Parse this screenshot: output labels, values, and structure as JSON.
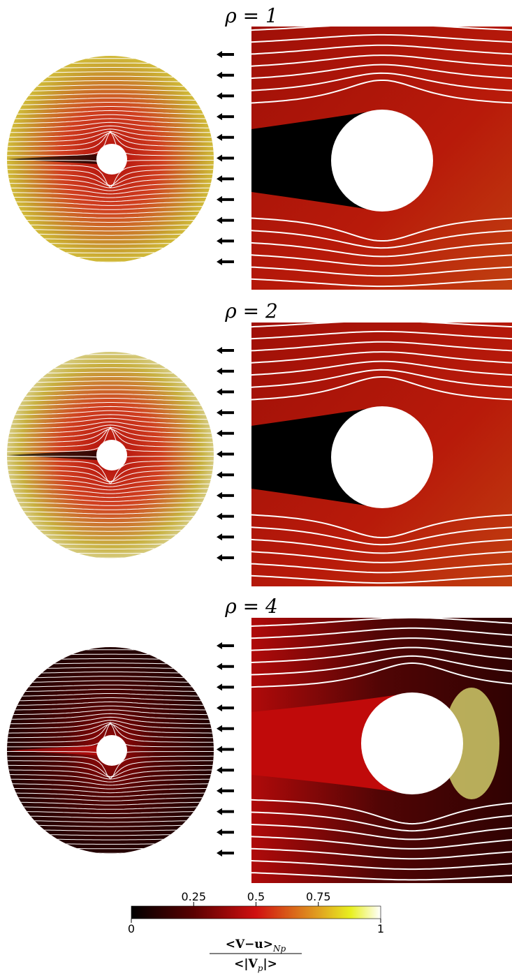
{
  "panels": [
    {
      "label": "ρ = 1"
    },
    {
      "label": "ρ = 2"
    },
    {
      "label": "ρ = 4"
    }
  ],
  "colorbar": {
    "lim": [
      0,
      1
    ],
    "ticks": [
      0,
      0.25,
      0.5,
      0.75,
      1
    ],
    "label_numerator": [
      "<V−u>",
      "Np"
    ],
    "label_denominator": [
      "<|V",
      "p",
      "|>"
    ]
  }
}
